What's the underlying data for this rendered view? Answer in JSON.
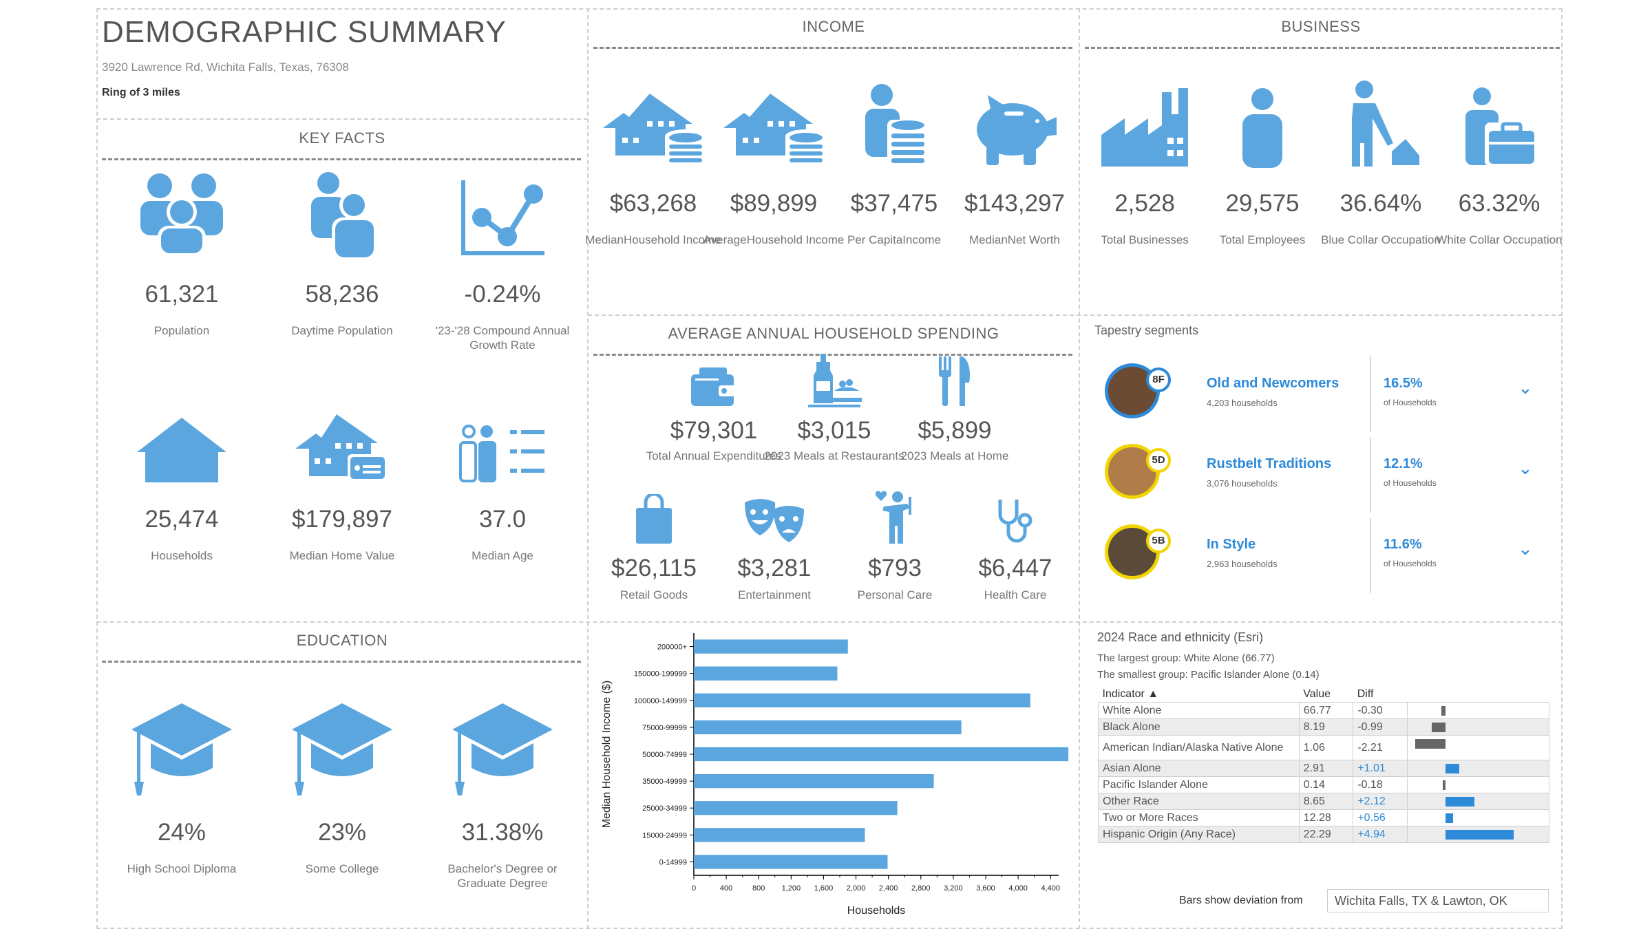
{
  "header": {
    "title": "DEMOGRAPHIC SUMMARY",
    "address": "3920 Lawrence Rd, Wichita Falls, Texas, 76308",
    "ring": "Ring of 3 miles"
  },
  "key_facts": {
    "title": "KEY FACTS",
    "items": [
      {
        "icon": "population-icon",
        "value": "61,321",
        "label": "Population"
      },
      {
        "icon": "daytime-population-icon",
        "value": "58,236",
        "label": "Daytime Population"
      },
      {
        "icon": "growth-chart-icon",
        "value": "-0.24%",
        "label": "'23-'28 Compound Annual Growth Rate"
      },
      {
        "icon": "house-icon",
        "value": "25,474",
        "label": "Households"
      },
      {
        "icon": "home-value-icon",
        "value": "$179,897",
        "label": "Median Home Value"
      },
      {
        "icon": "median-age-icon",
        "value": "37.0",
        "label": "Median Age"
      }
    ]
  },
  "income": {
    "title": "INCOME",
    "items": [
      {
        "icon": "house-coins-icon",
        "value": "$63,268",
        "label": "MedianHousehold Income"
      },
      {
        "icon": "house-coins-icon",
        "value": "$89,899",
        "label": "AverageHousehold Income"
      },
      {
        "icon": "person-coins-icon",
        "value": "$37,475",
        "label": "Per CapitaIncome"
      },
      {
        "icon": "piggy-bank-icon",
        "value": "$143,297",
        "label": "MedianNet Worth"
      }
    ]
  },
  "business": {
    "title": "BUSINESS",
    "items": [
      {
        "icon": "factory-icon",
        "value": "2,528",
        "label": "Total Businesses"
      },
      {
        "icon": "employee-icon",
        "value": "29,575",
        "label": "Total Employees"
      },
      {
        "icon": "blue-collar-icon",
        "value": "36.64%",
        "label": "Blue Collar Occupation"
      },
      {
        "icon": "white-collar-icon",
        "value": "63.32%",
        "label": "White Collar Occupation"
      }
    ]
  },
  "spending": {
    "title": "AVERAGE ANNUAL HOUSEHOLD SPENDING",
    "items": [
      {
        "icon": "wallet-icon",
        "value": "$79,301",
        "label": "Total Annual Expenditures"
      },
      {
        "icon": "restaurant-meal-icon",
        "value": "$3,015",
        "label": "2023 Meals at Restaurants"
      },
      {
        "icon": "fork-knife-icon",
        "value": "$5,899",
        "label": "2023 Meals at Home"
      },
      {
        "icon": "shopping-bag-icon",
        "value": "$26,115",
        "label": "Retail Goods"
      },
      {
        "icon": "theater-masks-icon",
        "value": "$3,281",
        "label": "Entertainment"
      },
      {
        "icon": "personal-care-icon",
        "value": "$793",
        "label": "Personal Care"
      },
      {
        "icon": "stethoscope-icon",
        "value": "$6,447",
        "label": "Health Care"
      }
    ]
  },
  "tapestry": {
    "title": "Tapestry segments",
    "items": [
      {
        "code": "8F",
        "name": "Old and Newcomers",
        "households": "4,203 households",
        "pct": "16.5%",
        "pct_label": "of Households",
        "ring": "#2d8ad8"
      },
      {
        "code": "5D",
        "name": "Rustbelt Traditions",
        "households": "3,076 households",
        "pct": "12.1%",
        "pct_label": "of Households",
        "ring": "#f2d400"
      },
      {
        "code": "5B",
        "name": "In Style",
        "households": "2,963 households",
        "pct": "11.6%",
        "pct_label": "of Households",
        "ring": "#f2d400"
      }
    ]
  },
  "education": {
    "title": "EDUCATION",
    "items": [
      {
        "icon": "graduation-cap-icon",
        "value": "24%",
        "label": "High School Diploma"
      },
      {
        "icon": "graduation-cap-icon",
        "value": "23%",
        "label": "Some College"
      },
      {
        "icon": "graduation-cap-icon",
        "value": "31.38%",
        "label": "Bachelor's Degree or Graduate Degree"
      }
    ]
  },
  "chart_data": {
    "type": "bar",
    "orientation": "horizontal",
    "categories": [
      "200000+",
      "150000-199999",
      "100000-149999",
      "75000-99999",
      "50000-74999",
      "35000-49999",
      "25000-34999",
      "15000-24999",
      "0-14999"
    ],
    "values": [
      1900,
      1770,
      4150,
      3300,
      4620,
      2960,
      2510,
      2110,
      2390
    ],
    "xlabel": "Households",
    "ylabel": "Median Household Income ($)",
    "xlim": [
      0,
      4500
    ],
    "xticks": [
      "0",
      "400",
      "800",
      "1,200",
      "1,600",
      "2,000",
      "2,400",
      "2,800",
      "3,200",
      "3,600",
      "4,000",
      "4,400"
    ],
    "color": "#5ba6de"
  },
  "race": {
    "title": "2024 Race and ethnicity (Esri)",
    "largest": "The largest group: White Alone (66.77)",
    "smallest": "The smallest group: Pacific Islander Alone (0.14)",
    "headers": {
      "indicator": "Indicator ▲",
      "value": "Value",
      "diff": "Diff"
    },
    "rows": [
      {
        "indicator": "White Alone",
        "value": "66.77",
        "diff": "-0.30",
        "delta": -0.3
      },
      {
        "indicator": "Black Alone",
        "value": "8.19",
        "diff": "-0.99",
        "delta": -0.99
      },
      {
        "indicator": "American Indian/Alaska Native Alone",
        "value": "1.06",
        "diff": "-2.21",
        "delta": -2.21
      },
      {
        "indicator": "Asian Alone",
        "value": "2.91",
        "diff": "+1.01",
        "delta": 1.01
      },
      {
        "indicator": "Pacific Islander Alone",
        "value": "0.14",
        "diff": "-0.18",
        "delta": -0.18
      },
      {
        "indicator": "Other Race",
        "value": "8.65",
        "diff": "+2.12",
        "delta": 2.12
      },
      {
        "indicator": "Two or More Races",
        "value": "12.28",
        "diff": "+0.56",
        "delta": 0.56
      },
      {
        "indicator": "Hispanic Origin (Any Race)",
        "value": "22.29",
        "diff": "+4.94",
        "delta": 4.94
      }
    ],
    "deviation_label": "Bars show deviation from",
    "deviation_value": "Wichita Falls, TX & Lawton, OK"
  }
}
